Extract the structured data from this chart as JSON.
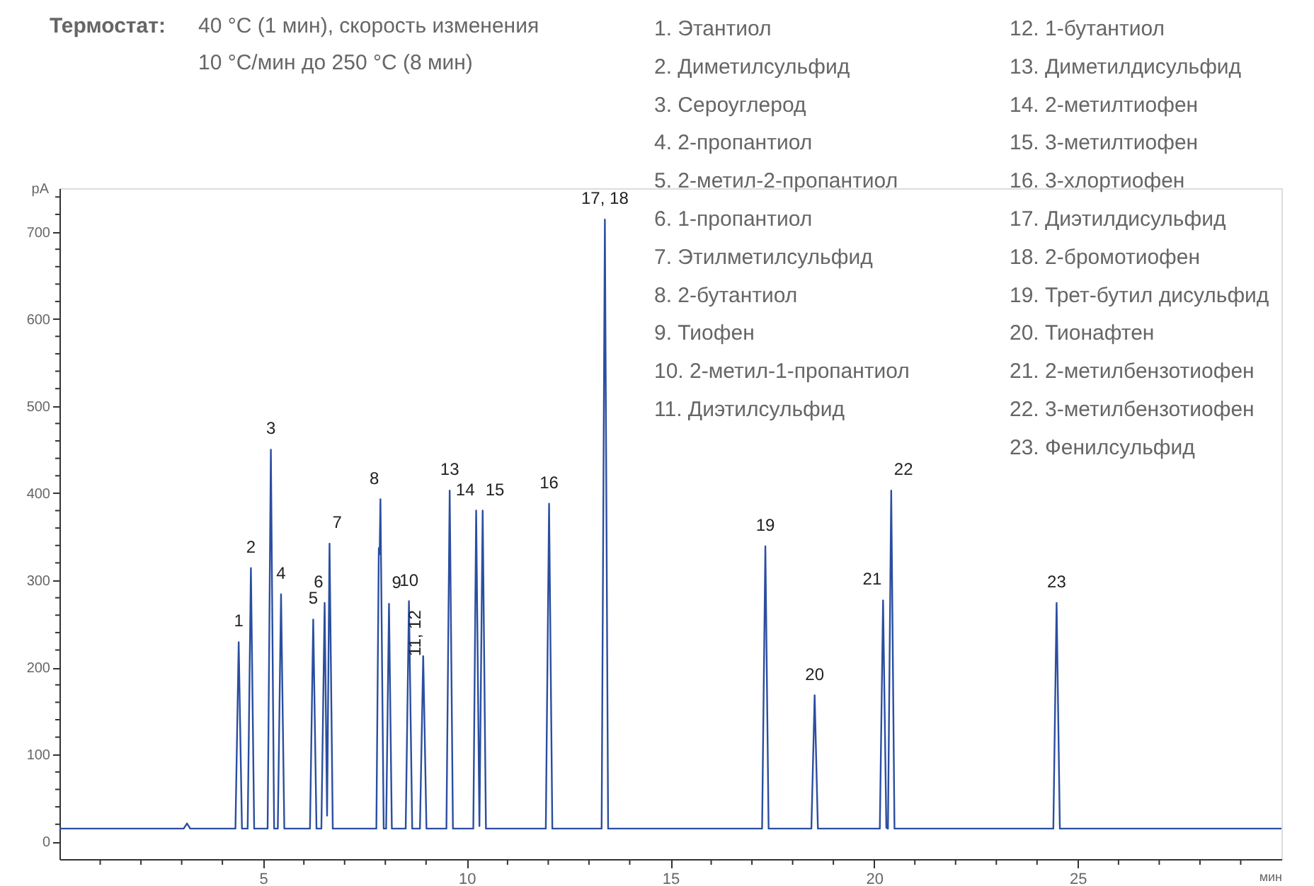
{
  "chart_data": {
    "type": "line",
    "title": "Термостат:",
    "subtitle": "40 °C (1 мин), скорость изменения\n10 °C/мин до 250 °C (8 мин)",
    "xlabel": "мин",
    "ylabel": "pA",
    "x": [
      0,
      3.05,
      3.13,
      3.21,
      4.32,
      4.4,
      4.48,
      4.62,
      4.7,
      4.78,
      5.11,
      5.19,
      5.27,
      5.36,
      5.44,
      5.52,
      6.15,
      6.23,
      6.31,
      6.43,
      6.51,
      6.57,
      6.63,
      6.71,
      7.78,
      7.84,
      7.86,
      7.88,
      7.96,
      8.02,
      8.09,
      8.16,
      8.5,
      8.58,
      8.66,
      8.85,
      8.93,
      9.01,
      9.5,
      9.58,
      9.66,
      10.16,
      10.23,
      10.31,
      10.39,
      10.47,
      11.94,
      12.02,
      12.1,
      13.31,
      13.39,
      13.47,
      17.25,
      17.33,
      17.41,
      18.46,
      18.54,
      18.62,
      20.14,
      20.22,
      20.3,
      20.34,
      20.42,
      20.5,
      24.4,
      24.48,
      24.56,
      30
    ],
    "series": [
      {
        "color": "#2b4ea0",
        "values": [
          15,
          15,
          21,
          15,
          15,
          229,
          15,
          15,
          314,
          15,
          15,
          450,
          15,
          15,
          284,
          15,
          15,
          255,
          15,
          15,
          274,
          30,
          342,
          15,
          15,
          337,
          330,
          393,
          15,
          15,
          273,
          15,
          15,
          276,
          15,
          15,
          213,
          15,
          15,
          403,
          15,
          15,
          380,
          18,
          380,
          15,
          15,
          388,
          15,
          15,
          714,
          15,
          15,
          339,
          15,
          15,
          168,
          15,
          15,
          277,
          16,
          15,
          403,
          15,
          15,
          274,
          15,
          15
        ]
      }
    ],
    "xlim": [
      0,
      30
    ],
    "ylim": [
      -20,
      750
    ],
    "xticks": [
      {
        "value": 1,
        "label": null
      },
      {
        "value": 2,
        "label": null
      },
      {
        "value": 3,
        "label": null
      },
      {
        "value": 4,
        "label": null
      },
      5,
      {
        "value": 6,
        "label": null
      },
      {
        "value": 7,
        "label": null
      },
      {
        "value": 8,
        "label": null
      },
      {
        "value": 9,
        "label": null
      },
      10,
      {
        "value": 11,
        "label": null
      },
      {
        "value": 12,
        "label": null
      },
      {
        "value": 13,
        "label": null
      },
      {
        "value": 14,
        "label": null
      },
      15,
      {
        "value": 16,
        "label": null
      },
      {
        "value": 17,
        "label": null
      },
      {
        "value": 18,
        "label": null
      },
      {
        "value": 19,
        "label": null
      },
      20,
      {
        "value": 21,
        "label": null
      },
      {
        "value": 22,
        "label": null
      },
      {
        "value": 23,
        "label": null
      },
      {
        "value": 24,
        "label": null
      },
      25,
      {
        "value": 26,
        "label": null
      },
      {
        "value": 27,
        "label": null
      },
      {
        "value": 28,
        "label": null
      },
      {
        "value": 29,
        "label": null
      }
    ],
    "yticks": [
      0,
      {
        "value": 20,
        "label": null
      },
      {
        "value": 40,
        "label": null
      },
      {
        "value": 60,
        "label": null
      },
      {
        "value": 80,
        "label": null
      },
      100,
      {
        "value": 120,
        "label": null
      },
      {
        "value": 140,
        "label": null
      },
      {
        "value": 160,
        "label": null
      },
      {
        "value": 180,
        "label": null
      },
      200,
      {
        "value": 220,
        "label": null
      },
      {
        "value": 240,
        "label": null
      },
      {
        "value": 260,
        "label": null
      },
      {
        "value": 280,
        "label": null
      },
      300,
      {
        "value": 320,
        "label": null
      },
      {
        "value": 340,
        "label": null
      },
      {
        "value": 360,
        "label": null
      },
      {
        "value": 380,
        "label": null
      },
      400,
      {
        "value": 420,
        "label": null
      },
      {
        "value": 440,
        "label": null
      },
      {
        "value": 460,
        "label": null
      },
      {
        "value": 480,
        "label": null
      },
      500,
      {
        "value": 520,
        "label": null
      },
      {
        "value": 540,
        "label": null
      },
      {
        "value": 560,
        "label": null
      },
      {
        "value": 580,
        "label": null
      },
      600,
      {
        "value": 620,
        "label": null
      },
      {
        "value": 640,
        "label": null
      },
      {
        "value": 660,
        "label": null
      },
      {
        "value": 680,
        "label": null
      },
      700,
      {
        "value": 720,
        "label": null
      },
      {
        "value": 740,
        "label": null
      }
    ],
    "grid": false,
    "legend": false,
    "marker": "none",
    "line_style": "solid",
    "annotations": [
      {
        "text": "1",
        "x": 4.4,
        "y": 229
      },
      {
        "text": "2",
        "x": 4.7,
        "y": 314
      },
      {
        "text": "3",
        "x": 5.19,
        "y": 450
      },
      {
        "text": "4",
        "x": 5.44,
        "y": 284
      },
      {
        "text": "5",
        "x": 6.23,
        "y": 255
      },
      {
        "text": "6",
        "x": 6.51,
        "y": 274
      },
      {
        "text": "7",
        "x": 6.63,
        "y": 342
      },
      {
        "text": "8",
        "x": 7.88,
        "y": 393
      },
      {
        "text": "9",
        "x": 8.09,
        "y": 273
      },
      {
        "text": "10",
        "x": 8.58,
        "y": 276
      },
      {
        "text": "11, 12",
        "x": 8.93,
        "y": 213
      },
      {
        "text": "13",
        "x": 9.58,
        "y": 403
      },
      {
        "text": "14",
        "x": 10.23,
        "y": 380
      },
      {
        "text": "15",
        "x": 10.39,
        "y": 380
      },
      {
        "text": "16",
        "x": 12.02,
        "y": 388
      },
      {
        "text": "17, 18",
        "x": 13.39,
        "y": 714
      },
      {
        "text": "19",
        "x": 17.33,
        "y": 339
      },
      {
        "text": "20",
        "x": 18.54,
        "y": 168
      },
      {
        "text": "21",
        "x": 20.22,
        "y": 277
      },
      {
        "text": "22",
        "x": 20.42,
        "y": 403
      },
      {
        "text": "23",
        "x": 24.48,
        "y": 274
      },
      "1. Этантиол",
      "2. Диметилсульфид",
      "3. Сероуглерод",
      "4. 2-пропантиол",
      "5. 2-метил-2-пропантиол",
      "6. 1-пропантиол",
      "7. Этилметилсульфид",
      "8. 2-бутантиол",
      "9. Тиофен",
      "10. 2-метил-1-пропантиол",
      "11. Диэтилсульфид",
      "12. 1-бутантиол",
      "13. Диметилдисульфид",
      "14. 2-метилтиофен",
      "15. 3-метилтиофен",
      "16. 3-хлортиофен",
      "17. Диэтилдисульфид",
      "18. 2-бромотиофен",
      "19. Трет-бутил дисульфид",
      "20. Тионафтен",
      "21. 2-метилбензотиофен",
      "22. 3-метилбензотиофен",
      "23. Фенилсульфид"
    ]
  }
}
